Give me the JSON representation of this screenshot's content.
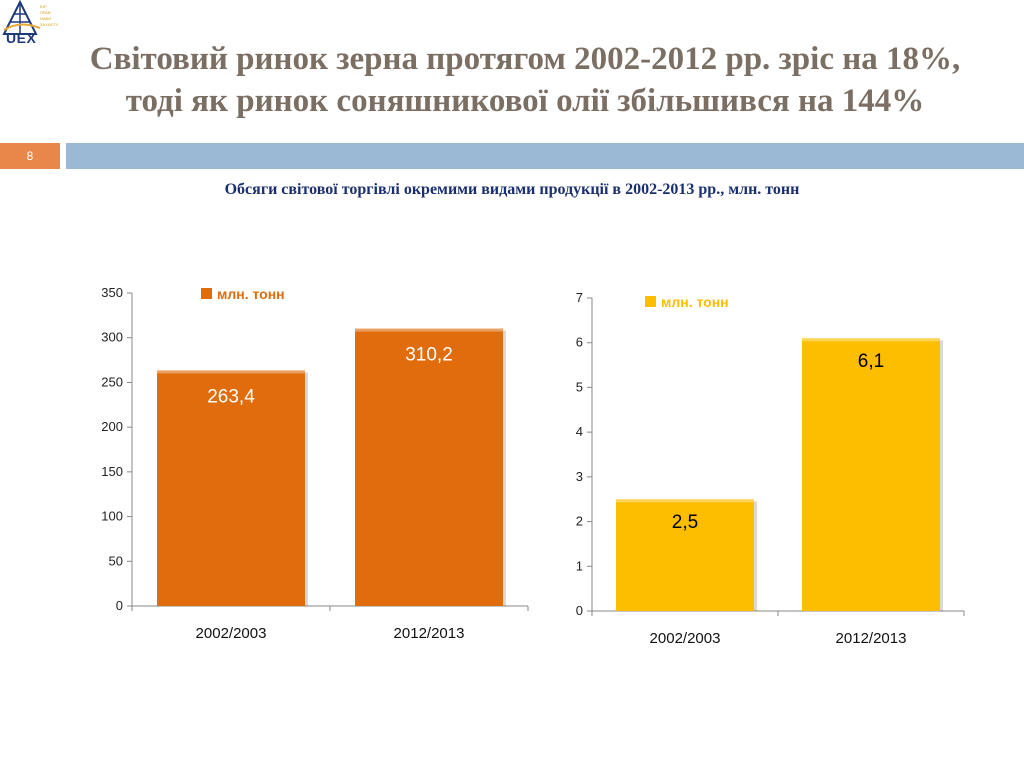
{
  "logo": {
    "text": "UEX",
    "icon": "uex-tower-logo-icon",
    "tagline": [
      "ІНР",
      "ПРАВ",
      "НАВИ",
      "ЗАХИСТУ"
    ]
  },
  "header": {
    "title_line1": "Світовий ринок зерна протягом 2002-2012 рр. зріс на 18%,",
    "title_line2": "тоді як ринок соняшникової олії збільшився на 144%",
    "page_number": "8"
  },
  "subtitle": "Обсяги світової торгівлі окремими видами продукції в 2002-2013 рр., млн. тонн",
  "colors": {
    "title": "#7b6e63",
    "page_badge": "#e9874b",
    "page_bar": "#9bb8d5",
    "subtitle": "#1a2f70",
    "grain_bar": "#e06c0c",
    "oil_bar": "#fdbe00"
  },
  "chart_data": [
    {
      "type": "bar",
      "categories": [
        "2002/2003",
        "2012/2013"
      ],
      "series": [
        {
          "name": "млн. тонн",
          "values": [
            263.4,
            310.2
          ],
          "color": "#e06c0c"
        }
      ],
      "data_labels": [
        "263,4",
        "310,2"
      ],
      "ylim": [
        0,
        350
      ],
      "yticks": [
        0,
        50,
        100,
        150,
        200,
        250,
        300,
        350
      ],
      "grid": false,
      "legend": "top-center"
    },
    {
      "type": "bar",
      "categories": [
        "2002/2003",
        "2012/2013"
      ],
      "series": [
        {
          "name": "млн. тонн",
          "values": [
            2.5,
            6.1
          ],
          "color": "#fdbe00"
        }
      ],
      "data_labels": [
        "2,5",
        "6,1"
      ],
      "ylim": [
        0,
        7
      ],
      "yticks": [
        0,
        1,
        2,
        3,
        4,
        5,
        6,
        7
      ],
      "grid": false,
      "legend": "top-center"
    }
  ]
}
